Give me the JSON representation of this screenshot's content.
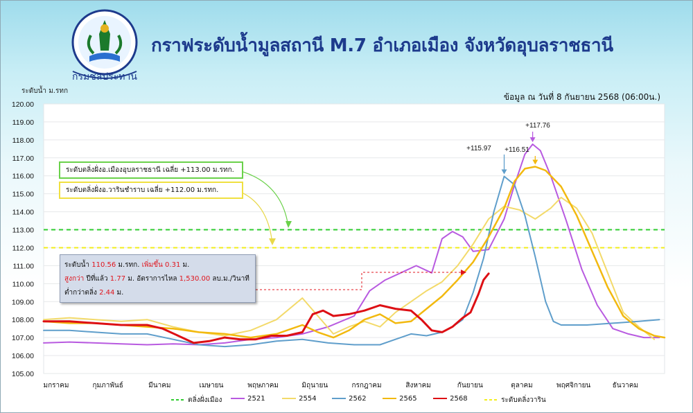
{
  "header": {
    "title": "กราฟระดับน้ำมูลสถานี M.7 อำเภอเมือง จังหวัดอุบลราชธานี",
    "logo_text": "กรมชลประทาน",
    "unit_label": "ระดับน้ำ ม.รทก",
    "date_info": "ข้อมูล ณ วันที่ 8 กันยายน 2568 (06:00น.)"
  },
  "annotations": {
    "bank_mueang": "ระดับตลิ่งฝั่งอ.เมืองอุบลราชธานี เฉลี่ย +113.00 ม.รทก.",
    "bank_warin": "ระดับตลิ่งฝั่งอ.วารินชำราบ  เฉลี่ย +112.00 ม.รทก.",
    "peak_2562": "+115.97",
    "peak_2565": "+116.51",
    "peak_2521": "+117.76"
  },
  "info_box": {
    "level_label": "ระดับน้ำ",
    "level_value": "110.56",
    "level_unit": "ม.รทก.",
    "rise_label": "เพิ่มขึ้น",
    "rise_value": "0.31",
    "rise_unit": "ม.",
    "higher_label": "สูงกว่า",
    "higher_mid": "ปีที่แล้ว",
    "higher_value": "1.77",
    "flow_label": "ม. อัตราการไหล",
    "flow_value": "1,530.00",
    "flow_unit": "ลบ.ม./วินาที",
    "below_label": "ต่ำกว่าตลิ่ง",
    "below_value": "2.44",
    "below_unit": "ม."
  },
  "legend": [
    {
      "label": "ตลิ่งฝั่งเมือง",
      "color": "#2ecc2e",
      "dashed": true
    },
    {
      "label": "2521",
      "color": "#b85ae0",
      "dashed": false
    },
    {
      "label": "2554",
      "color": "#f3da6a",
      "dashed": false
    },
    {
      "label": "2562",
      "color": "#5f9ecb",
      "dashed": false
    },
    {
      "label": "2565",
      "color": "#f2b90f",
      "dashed": false
    },
    {
      "label": "2568",
      "color": "#dd0f14",
      "dashed": false
    },
    {
      "label": "ระดับตลิ่งวาริน",
      "color": "#f2ee1a",
      "dashed": true
    }
  ],
  "chart_data": {
    "type": "line",
    "ylim": [
      105,
      120
    ],
    "yticks": [
      "105.00",
      "106.00",
      "107.00",
      "108.00",
      "109.00",
      "110.00",
      "111.00",
      "112.00",
      "113.00",
      "114.00",
      "115.00",
      "116.00",
      "117.00",
      "118.00",
      "119.00",
      "120.00"
    ],
    "xlim": [
      0,
      12
    ],
    "xticks": [
      "มกราคม",
      "กุมภาพันธ์",
      "มีนาคม",
      "เมษายน",
      "พฤษภาคม",
      "มิถุนายน",
      "กรกฎาคม",
      "สิงหาคม",
      "กันยายน",
      "ตุลาคม",
      "พฤศจิกายน",
      "ธันวาคม"
    ],
    "hlines": [
      {
        "name": "ตลิ่งฝั่งเมือง",
        "value": 113.0,
        "color": "#2ecc2e"
      },
      {
        "name": "ระดับตลิ่งวาริน",
        "value": 112.0,
        "color": "#f2ee1a"
      }
    ],
    "series": [
      {
        "name": "2521",
        "color": "#b85ae0",
        "width": 2,
        "x": [
          0,
          0.5,
          1,
          1.5,
          2,
          2.5,
          3,
          3.5,
          4,
          4.5,
          5,
          5.5,
          6,
          6.3,
          6.6,
          6.9,
          7.2,
          7.5,
          7.7,
          7.9,
          8.1,
          8.3,
          8.6,
          8.9,
          9.1,
          9.3,
          9.45,
          9.6,
          9.8,
          10.1,
          10.4,
          10.7,
          11,
          11.3,
          11.6,
          11.9
        ],
        "y": [
          106.7,
          106.75,
          106.7,
          106.65,
          106.6,
          106.65,
          106.6,
          106.7,
          106.9,
          107.0,
          107.2,
          107.6,
          108.2,
          109.6,
          110.2,
          110.6,
          111.0,
          110.6,
          112.5,
          112.9,
          112.6,
          111.8,
          111.9,
          113.6,
          115.5,
          117.2,
          117.76,
          117.4,
          116.0,
          113.5,
          110.8,
          108.8,
          107.5,
          107.2,
          107.0,
          107.0
        ]
      },
      {
        "name": "2554",
        "color": "#f3da6a",
        "width": 2,
        "x": [
          0,
          0.5,
          1,
          1.5,
          2,
          2.5,
          3,
          3.5,
          4,
          4.5,
          5,
          5.3,
          5.6,
          5.9,
          6.2,
          6.5,
          6.8,
          7.1,
          7.4,
          7.7,
          8.0,
          8.3,
          8.6,
          8.9,
          9.2,
          9.5,
          9.8,
          10.0,
          10.3,
          10.6,
          10.9,
          11.2,
          11.5,
          11.8
        ],
        "y": [
          108.0,
          108.1,
          108.0,
          107.9,
          108.0,
          107.6,
          107.3,
          107.1,
          107.4,
          108.0,
          109.2,
          108.2,
          107.2,
          107.6,
          107.9,
          107.6,
          108.4,
          109.0,
          109.6,
          110.1,
          111.0,
          112.2,
          113.6,
          114.3,
          114.1,
          113.6,
          114.2,
          114.8,
          114.2,
          112.8,
          110.6,
          108.4,
          107.6,
          106.9
        ]
      },
      {
        "name": "2562",
        "color": "#5f9ecb",
        "width": 2,
        "x": [
          0,
          0.5,
          1,
          1.5,
          2,
          2.5,
          3,
          3.5,
          4,
          4.5,
          5,
          5.5,
          6,
          6.5,
          6.8,
          7.1,
          7.4,
          7.7,
          7.9,
          8.1,
          8.3,
          8.5,
          8.7,
          8.9,
          9.1,
          9.3,
          9.5,
          9.7,
          9.85,
          10.0,
          10.5,
          11,
          11.5,
          11.9
        ],
        "y": [
          107.4,
          107.4,
          107.3,
          107.2,
          107.2,
          106.9,
          106.6,
          106.5,
          106.6,
          106.8,
          106.9,
          106.7,
          106.6,
          106.6,
          106.9,
          107.2,
          107.1,
          107.3,
          107.6,
          108.0,
          109.5,
          111.4,
          114.0,
          115.97,
          115.5,
          113.8,
          111.5,
          109.0,
          107.9,
          107.7,
          107.7,
          107.8,
          107.9,
          108.0
        ]
      },
      {
        "name": "2565",
        "color": "#f2b90f",
        "width": 2.5,
        "x": [
          0,
          0.5,
          1,
          1.5,
          2,
          2.5,
          3,
          3.5,
          4,
          4.5,
          5,
          5.3,
          5.6,
          5.9,
          6.2,
          6.5,
          6.8,
          7.1,
          7.4,
          7.7,
          8.0,
          8.3,
          8.6,
          8.9,
          9.1,
          9.3,
          9.5,
          9.7,
          10.0,
          10.3,
          10.6,
          10.9,
          11.2,
          11.5,
          11.8,
          12.0
        ],
        "y": [
          107.9,
          107.8,
          107.8,
          107.7,
          107.6,
          107.5,
          107.3,
          107.2,
          107.0,
          107.2,
          107.7,
          107.3,
          107.0,
          107.4,
          108.0,
          108.3,
          107.8,
          107.9,
          108.6,
          109.3,
          110.2,
          111.2,
          112.6,
          114.2,
          115.7,
          116.4,
          116.51,
          116.3,
          115.4,
          113.8,
          111.8,
          109.8,
          108.2,
          107.5,
          107.1,
          107.0
        ]
      },
      {
        "name": "2568",
        "color": "#dd0f14",
        "width": 3,
        "x": [
          0,
          0.5,
          1,
          1.5,
          2,
          2.3,
          2.6,
          2.9,
          3.2,
          3.5,
          3.8,
          4.1,
          4.4,
          4.7,
          5.0,
          5.2,
          5.4,
          5.6,
          5.9,
          6.2,
          6.5,
          6.8,
          7.1,
          7.3,
          7.5,
          7.7,
          7.9,
          8.1,
          8.25,
          8.4,
          8.5,
          8.6
        ],
        "y": [
          107.9,
          107.9,
          107.8,
          107.7,
          107.7,
          107.5,
          107.1,
          106.7,
          106.8,
          107.0,
          106.9,
          106.9,
          107.1,
          107.1,
          107.3,
          108.3,
          108.5,
          108.2,
          108.3,
          108.5,
          108.8,
          108.6,
          108.5,
          108.0,
          107.4,
          107.3,
          107.6,
          108.1,
          108.4,
          109.4,
          110.2,
          110.56
        ]
      }
    ]
  }
}
